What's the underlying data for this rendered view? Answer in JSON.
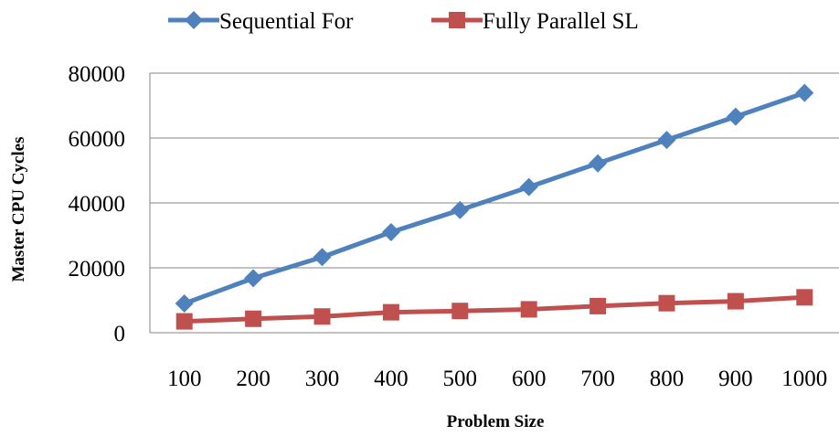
{
  "chart_data": {
    "type": "line",
    "title": "",
    "xlabel": "Problem Size",
    "ylabel": "Master CPU Cycles",
    "categories": [
      "100",
      "200",
      "300",
      "400",
      "500",
      "600",
      "700",
      "800",
      "900",
      "1000"
    ],
    "ylim": [
      0,
      80000
    ],
    "yticks": [
      "0",
      "20000",
      "40000",
      "60000",
      "80000"
    ],
    "grid": "horizontal",
    "legend_position": "top",
    "series": [
      {
        "name": "Sequential For",
        "color": "#4f81bd",
        "marker": "diamond",
        "values": [
          9000,
          16800,
          23300,
          31000,
          37800,
          44900,
          52200,
          59400,
          66600,
          73900
        ]
      },
      {
        "name": "Fully Parallel SL",
        "color": "#c0504d",
        "marker": "square",
        "values": [
          3500,
          4300,
          5000,
          6300,
          6700,
          7200,
          8200,
          9100,
          9700,
          10900
        ]
      }
    ]
  }
}
